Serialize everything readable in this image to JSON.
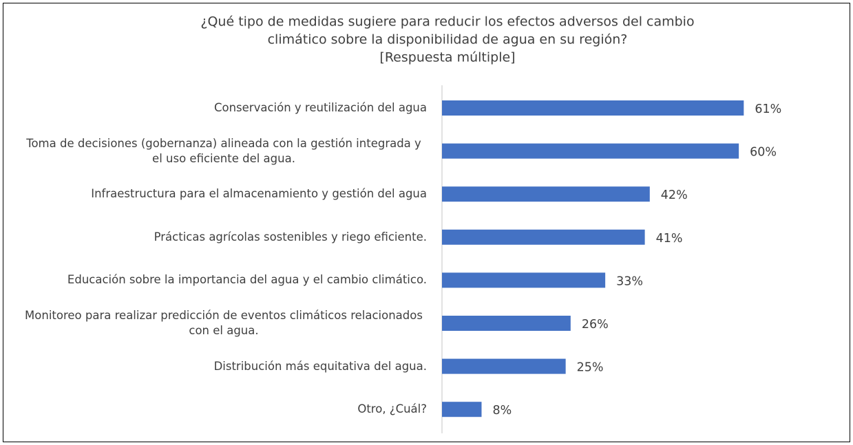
{
  "chart_data": {
    "type": "bar",
    "orientation": "horizontal",
    "title": [
      "¿Qué tipo de medidas sugiere para reducir los efectos adversos del cambio",
      "climático sobre la disponibilidad de agua en su región?",
      "[Respuesta múltiple]"
    ],
    "categories": [
      "Conservación y reutilización del agua",
      "Toma de decisiones (gobernanza) alineada con la gestión integrada y el uso eficiente del agua.",
      "Infraestructura para el almacenamiento y gestión del agua",
      "Prácticas agrícolas sostenibles y riego eficiente.",
      "Educación sobre la importancia del agua y el cambio climático.",
      "Monitoreo para realizar predicción de eventos climáticos relacionados con el agua.",
      "Distribución más equitativa del agua.",
      "Otro, ¿Cuál?"
    ],
    "values": [
      61,
      60,
      42,
      41,
      33,
      26,
      25,
      8
    ],
    "value_labels": [
      "61%",
      "60%",
      "42%",
      "41%",
      "33%",
      "26%",
      "25%",
      "8%"
    ],
    "color": "#4472c4",
    "xlim": [
      0,
      70
    ]
  }
}
